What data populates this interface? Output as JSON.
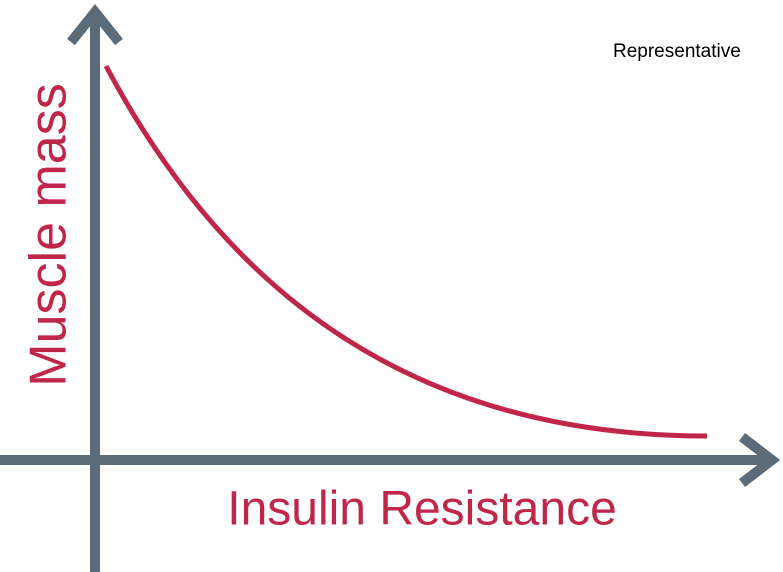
{
  "note": "Representative",
  "y_axis_label": "Muscle mass",
  "x_axis_label": "Insulin Resistance"
}
